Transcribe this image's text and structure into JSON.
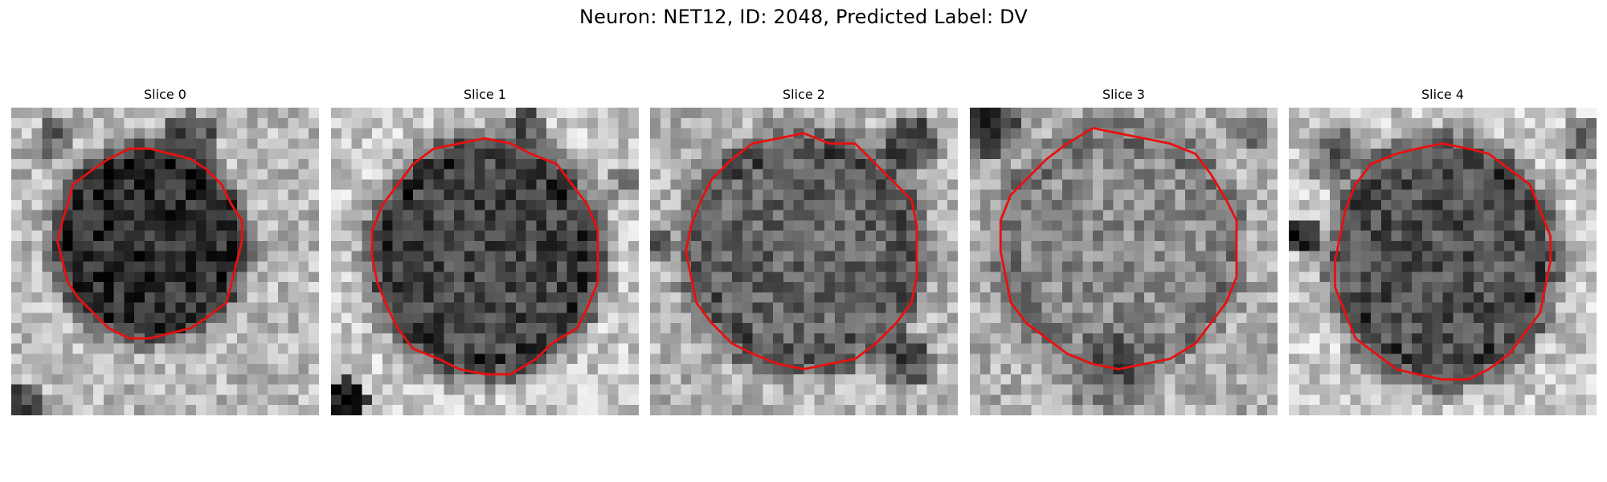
{
  "figure": {
    "title": "Neuron: NET12, ID: 2048, Predicted Label: DV",
    "contour_color": "#e8100f",
    "colormap": "grayscale",
    "panels": [
      {
        "title": "Slice 0"
      },
      {
        "title": "Slice 1"
      },
      {
        "title": "Slice 2"
      },
      {
        "title": "Slice 3"
      },
      {
        "title": "Slice 4"
      }
    ]
  }
}
